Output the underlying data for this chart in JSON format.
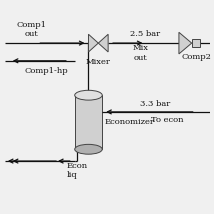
{
  "bg_color": "#f0f0f0",
  "comp1_out_label": "Comp1\nout",
  "comp1_hp_label": "Comp1-hp",
  "mixer_label": "Mixer",
  "mix_out_label": "Mix\nout",
  "comp2_label": "Comp2",
  "bar25_label": "2.5 bar",
  "economizer_label": "Economizer",
  "bar33_label": "3.3 bar",
  "to_econ_label": "To econ",
  "econ_liq_label": "Econ\nliq",
  "line_color": "#111111",
  "component_fill": "#d0d0d0",
  "component_edge": "#444444",
  "font_size": 6.0
}
